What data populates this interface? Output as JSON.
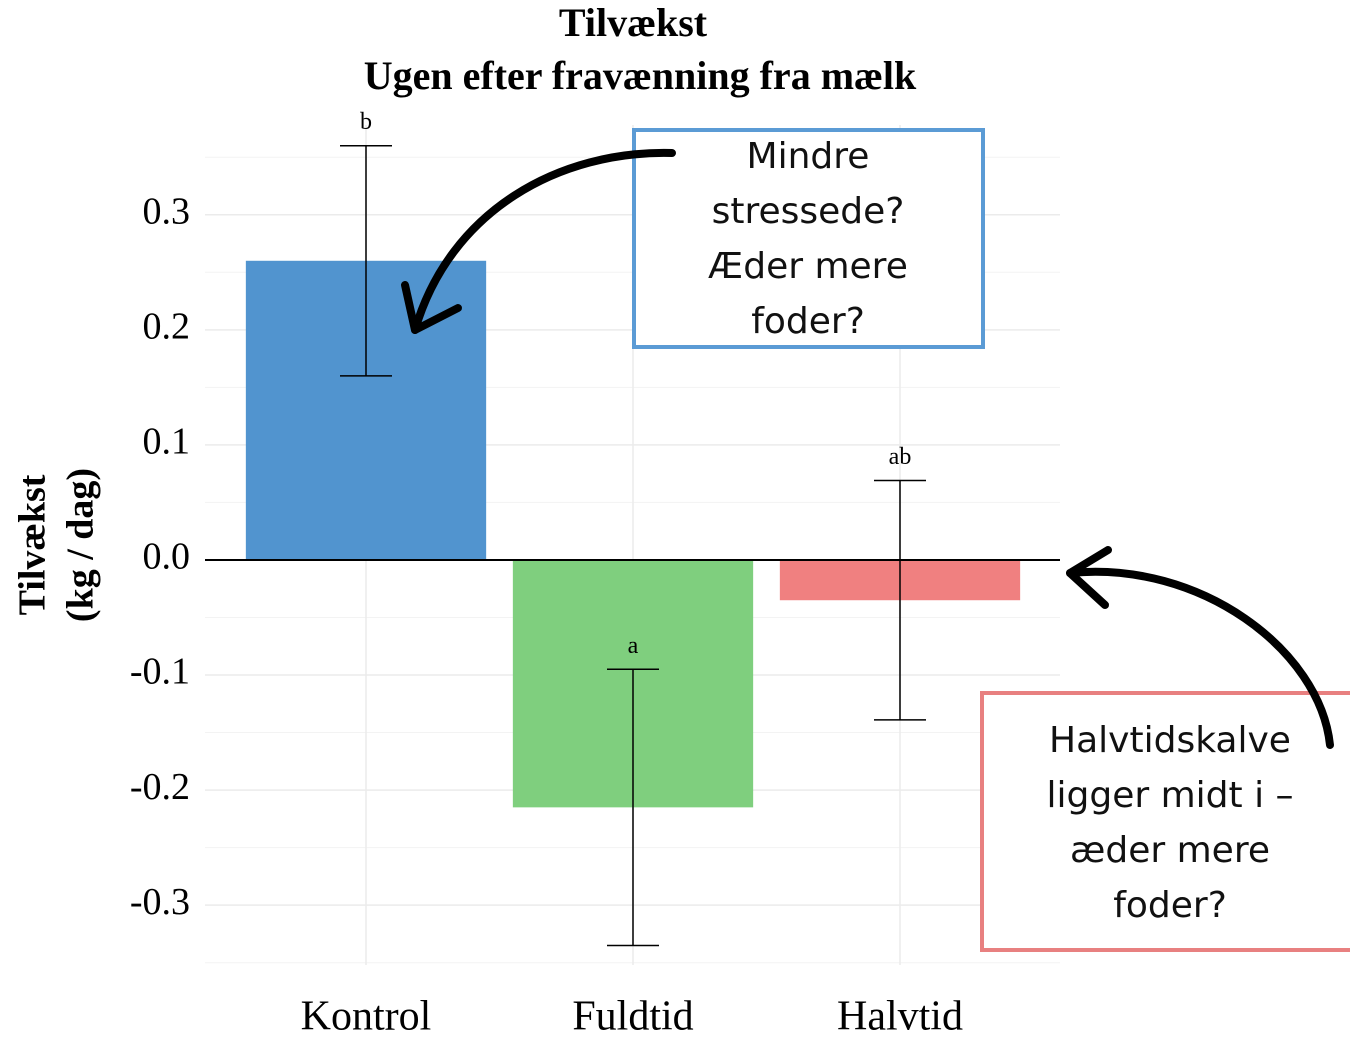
{
  "chart_data": {
    "type": "bar",
    "title": "Tilvækst",
    "subtitle": "Ugen efter fravænning fra mælk",
    "y_label": [
      "Tilvækst",
      "(kg / dag)"
    ],
    "categories": [
      "Kontrol",
      "Fuldtid",
      "Halvtid"
    ],
    "values": [
      0.26,
      -0.215,
      -0.035
    ],
    "errors": [
      0.1,
      0.12,
      0.104
    ],
    "significance": [
      "b",
      "a",
      "ab"
    ],
    "colors": [
      "#5194cf",
      "#7fcf7e",
      "#f08080"
    ],
    "ylim": [
      -0.352,
      0.378
    ],
    "yticks": [
      -0.3,
      -0.2,
      -0.1,
      {
        "value": 0,
        "label": "0.0"
      },
      0.1,
      0.2,
      0.3
    ],
    "grid": true,
    "annotations": [
      {
        "lines": [
          "Mindre",
          "stressede?",
          "Æder mere",
          "foder?"
        ],
        "color": "#5b9bd5"
      },
      {
        "lines": [
          "Halvtidskalve",
          "ligger midt i –",
          "æder mere",
          "foder?"
        ],
        "color": "#e88080"
      }
    ]
  }
}
